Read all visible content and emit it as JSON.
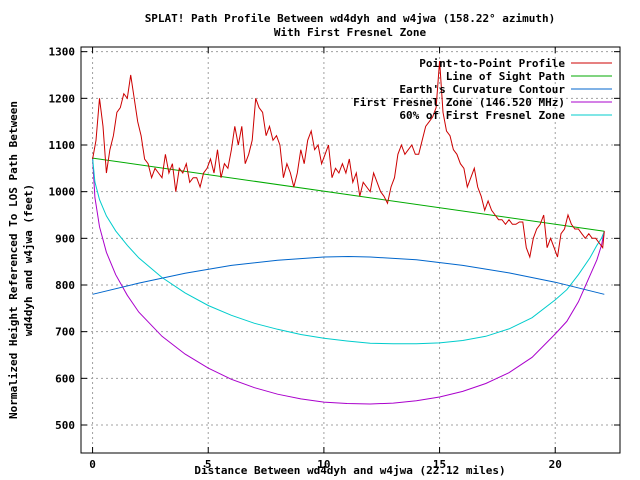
{
  "chart_data": {
    "type": "line",
    "title": "SPLAT! Path Profile Between wd4dyh and w4jwa (158.22° azimuth)",
    "subtitle": "With First Fresnel Zone",
    "xlabel": "Distance Between wd4dyh and w4jwa (22.12 miles)",
    "ylabel_line1": "Normalized Height Referenced To LOS Path Between",
    "ylabel_line2": "wd4dyh and w4jwa (feet)",
    "xlim": [
      -0.5,
      22.8
    ],
    "ylim": [
      440,
      1310
    ],
    "x_ticks": [
      0,
      5,
      10,
      15,
      20
    ],
    "y_ticks": [
      500,
      600,
      700,
      800,
      900,
      1000,
      1100,
      1200,
      1300
    ],
    "grid": true,
    "legend_position": "top-right",
    "series": [
      {
        "name": "Point-to-Point Profile",
        "color": "#cc0000",
        "x": [
          0,
          0.15,
          0.3,
          0.45,
          0.6,
          0.75,
          0.9,
          1.05,
          1.2,
          1.35,
          1.5,
          1.65,
          1.8,
          1.95,
          2.1,
          2.25,
          2.4,
          2.55,
          2.7,
          2.85,
          3.0,
          3.15,
          3.3,
          3.45,
          3.6,
          3.75,
          3.9,
          4.05,
          4.2,
          4.35,
          4.5,
          4.65,
          4.8,
          4.95,
          5.1,
          5.25,
          5.4,
          5.55,
          5.7,
          5.85,
          6.0,
          6.15,
          6.3,
          6.45,
          6.6,
          6.75,
          6.9,
          7.05,
          7.2,
          7.35,
          7.5,
          7.65,
          7.8,
          7.95,
          8.1,
          8.25,
          8.4,
          8.55,
          8.7,
          8.85,
          9.0,
          9.15,
          9.3,
          9.45,
          9.6,
          9.75,
          9.9,
          10.05,
          10.2,
          10.35,
          10.5,
          10.65,
          10.8,
          10.95,
          11.1,
          11.25,
          11.4,
          11.55,
          11.7,
          11.85,
          12.0,
          12.15,
          12.3,
          12.45,
          12.6,
          12.75,
          12.9,
          13.05,
          13.2,
          13.35,
          13.5,
          13.65,
          13.8,
          13.95,
          14.1,
          14.25,
          14.4,
          14.55,
          14.7,
          14.85,
          15.0,
          15.15,
          15.3,
          15.45,
          15.6,
          15.75,
          15.9,
          16.05,
          16.2,
          16.35,
          16.5,
          16.65,
          16.8,
          16.95,
          17.1,
          17.25,
          17.4,
          17.55,
          17.7,
          17.85,
          18.0,
          18.15,
          18.3,
          18.45,
          18.6,
          18.75,
          18.9,
          19.05,
          19.2,
          19.35,
          19.5,
          19.65,
          19.8,
          19.95,
          20.1,
          20.25,
          20.4,
          20.55,
          20.7,
          20.85,
          21.0,
          21.15,
          21.3,
          21.45,
          21.6,
          21.75,
          21.9,
          22.05,
          22.12
        ],
        "y": [
          1070,
          1110,
          1200,
          1140,
          1040,
          1090,
          1120,
          1170,
          1180,
          1210,
          1200,
          1250,
          1200,
          1150,
          1120,
          1070,
          1060,
          1030,
          1050,
          1040,
          1030,
          1080,
          1040,
          1060,
          1000,
          1050,
          1040,
          1060,
          1020,
          1030,
          1030,
          1010,
          1040,
          1050,
          1070,
          1040,
          1090,
          1030,
          1060,
          1050,
          1090,
          1140,
          1100,
          1140,
          1060,
          1080,
          1110,
          1200,
          1180,
          1170,
          1120,
          1140,
          1110,
          1120,
          1100,
          1030,
          1060,
          1040,
          1010,
          1040,
          1090,
          1060,
          1110,
          1130,
          1090,
          1100,
          1060,
          1080,
          1100,
          1030,
          1050,
          1040,
          1060,
          1040,
          1070,
          1020,
          1040,
          990,
          1020,
          1010,
          1000,
          1040,
          1020,
          1000,
          990,
          975,
          1010,
          1030,
          1080,
          1100,
          1080,
          1090,
          1100,
          1080,
          1080,
          1110,
          1140,
          1150,
          1160,
          1180,
          1280,
          1170,
          1130,
          1120,
          1090,
          1080,
          1060,
          1050,
          1010,
          1030,
          1050,
          1010,
          990,
          960,
          980,
          960,
          950,
          940,
          940,
          930,
          940,
          930,
          930,
          935,
          935,
          880,
          860,
          900,
          920,
          930,
          950,
          880,
          900,
          880,
          860,
          910,
          920,
          950,
          930,
          920,
          920,
          910,
          900,
          910,
          900,
          900,
          890,
          880,
          915
        ]
      },
      {
        "name": "Line of Sight Path",
        "color": "#00aa00",
        "x": [
          0,
          22.12
        ],
        "y": [
          1072,
          915
        ]
      },
      {
        "name": "Earth's Curvature Contour",
        "color": "#0066cc",
        "x": [
          0,
          2,
          4,
          6,
          8,
          10,
          11.06,
          12,
          14,
          16,
          18,
          20,
          22.12
        ],
        "y": [
          780,
          804,
          825,
          842,
          853,
          860,
          861,
          860,
          854,
          842,
          826,
          806,
          780
        ]
      },
      {
        "name": "First Fresnel Zone (146.520 MHz)",
        "color": "#aa00cc",
        "x": [
          0,
          0.1,
          0.3,
          0.6,
          1,
          1.5,
          2,
          3,
          4,
          5,
          6,
          7,
          8,
          9,
          10,
          11,
          12,
          13,
          14,
          15,
          16,
          17,
          18,
          19,
          20,
          20.5,
          21,
          21.5,
          21.8,
          22.0,
          22.12
        ],
        "y": [
          1072,
          988,
          925,
          870,
          822,
          778,
          742,
          690,
          652,
          622,
          598,
          580,
          566,
          556,
          549,
          546,
          545,
          547,
          552,
          560,
          572,
          589,
          612,
          645,
          695,
          722,
          764,
          820,
          854,
          885,
          915
        ]
      },
      {
        "name": "60% of First Fresnel Zone",
        "color": "#00cccc",
        "x": [
          0,
          0.1,
          0.3,
          0.6,
          1,
          1.5,
          2,
          3,
          4,
          5,
          6,
          7,
          8,
          9,
          10,
          11,
          12,
          13,
          14,
          15,
          16,
          17,
          18,
          19,
          20,
          20.5,
          21,
          21.5,
          21.8,
          22.0,
          22.12
        ],
        "y": [
          1072,
          1021,
          983,
          948,
          916,
          885,
          858,
          816,
          783,
          756,
          735,
          718,
          705,
          694,
          686,
          680,
          675,
          674,
          674,
          676,
          681,
          690,
          706,
          730,
          768,
          790,
          822,
          858,
          885,
          900,
          915
        ]
      }
    ]
  }
}
